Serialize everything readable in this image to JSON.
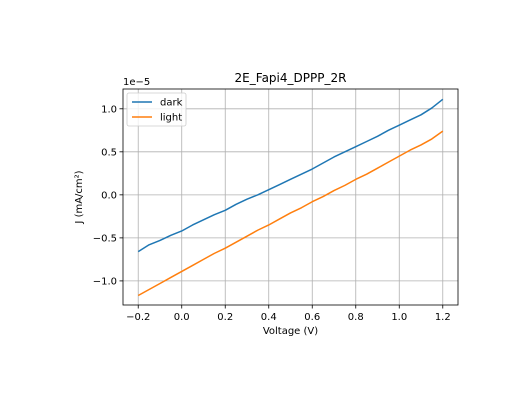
{
  "chart_data": {
    "type": "line",
    "title": "2E_Fapi4_DPPP_2R",
    "xlabel": "Voltage (V)",
    "ylabel": "J (mA/cm²)",
    "y_offset_label": "1e−5",
    "xlim": [
      -0.27,
      1.27
    ],
    "ylim": [
      -1.28,
      1.23
    ],
    "x_ticks": [
      -0.2,
      0.0,
      0.2,
      0.4,
      0.6,
      0.8,
      1.0,
      1.2
    ],
    "x_tick_labels": [
      "−0.2",
      "0.0",
      "0.2",
      "0.4",
      "0.6",
      "0.8",
      "1.0",
      "1.2"
    ],
    "y_ticks": [
      -1.0,
      -0.5,
      0.0,
      0.5,
      1.0
    ],
    "y_tick_labels": [
      "−1.0",
      "−0.5",
      "0.0",
      "0.5",
      "1.0"
    ],
    "grid": true,
    "legend_position": "top-left",
    "series": [
      {
        "name": "dark",
        "color": "#1f77b4",
        "x": [
          -0.2,
          -0.15,
          -0.1,
          -0.05,
          0.0,
          0.05,
          0.1,
          0.15,
          0.2,
          0.25,
          0.3,
          0.35,
          0.4,
          0.45,
          0.5,
          0.55,
          0.6,
          0.65,
          0.7,
          0.75,
          0.8,
          0.85,
          0.9,
          0.95,
          1.0,
          1.05,
          1.1,
          1.15,
          1.2
        ],
        "y": [
          -0.66,
          -0.58,
          -0.53,
          -0.47,
          -0.42,
          -0.35,
          -0.29,
          -0.23,
          -0.18,
          -0.11,
          -0.05,
          0.0,
          0.06,
          0.12,
          0.18,
          0.24,
          0.3,
          0.37,
          0.44,
          0.5,
          0.56,
          0.62,
          0.68,
          0.75,
          0.81,
          0.87,
          0.93,
          1.01,
          1.11
        ]
      },
      {
        "name": "light",
        "color": "#ff7f0e",
        "x": [
          -0.2,
          -0.15,
          -0.1,
          -0.05,
          0.0,
          0.05,
          0.1,
          0.15,
          0.2,
          0.25,
          0.3,
          0.35,
          0.4,
          0.45,
          0.5,
          0.55,
          0.6,
          0.65,
          0.7,
          0.75,
          0.8,
          0.85,
          0.9,
          0.95,
          1.0,
          1.05,
          1.1,
          1.15,
          1.2
        ],
        "y": [
          -1.17,
          -1.1,
          -1.03,
          -0.96,
          -0.89,
          -0.82,
          -0.75,
          -0.68,
          -0.62,
          -0.55,
          -0.48,
          -0.41,
          -0.35,
          -0.28,
          -0.21,
          -0.15,
          -0.08,
          -0.02,
          0.05,
          0.11,
          0.18,
          0.24,
          0.31,
          0.38,
          0.45,
          0.52,
          0.58,
          0.65,
          0.74
        ]
      }
    ]
  }
}
